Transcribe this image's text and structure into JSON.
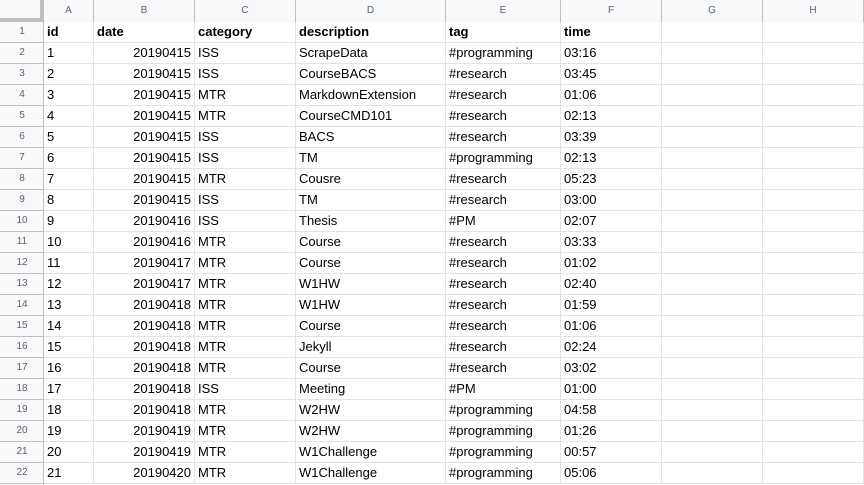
{
  "columns": [
    "A",
    "B",
    "C",
    "D",
    "E",
    "F",
    "G",
    "H"
  ],
  "rows": [
    [
      "id",
      "date",
      "category",
      "description",
      "tag",
      "time"
    ],
    [
      "1",
      "20190415",
      "ISS",
      "ScrapeData",
      "#programming",
      "03:16"
    ],
    [
      "2",
      "20190415",
      "ISS",
      "CourseBACS",
      "#research",
      "03:45"
    ],
    [
      "3",
      "20190415",
      "MTR",
      "MarkdownExtension",
      "#research",
      "01:06"
    ],
    [
      "4",
      "20190415",
      "MTR",
      "CourseCMD101",
      "#research",
      "02:13"
    ],
    [
      "5",
      "20190415",
      "ISS",
      "BACS",
      "#research",
      "03:39"
    ],
    [
      "6",
      "20190415",
      "ISS",
      "TM",
      "#programming",
      "02:13"
    ],
    [
      "7",
      "20190415",
      "MTR",
      "Cousre",
      "#research",
      "05:23"
    ],
    [
      "8",
      "20190415",
      "ISS",
      "TM",
      "#research",
      "03:00"
    ],
    [
      "9",
      "20190416",
      "ISS",
      "Thesis",
      "#PM",
      "02:07"
    ],
    [
      "10",
      "20190416",
      "MTR",
      "Course",
      "#research",
      "03:33"
    ],
    [
      "11",
      "20190417",
      "MTR",
      "Course",
      "#research",
      "01:02"
    ],
    [
      "12",
      "20190417",
      "MTR",
      "W1HW",
      "#research",
      "02:40"
    ],
    [
      "13",
      "20190418",
      "MTR",
      "W1HW",
      "#research",
      "01:59"
    ],
    [
      "14",
      "20190418",
      "MTR",
      "Course",
      "#research",
      "01:06"
    ],
    [
      "15",
      "20190418",
      "MTR",
      "Jekyll",
      "#research",
      "02:24"
    ],
    [
      "16",
      "20190418",
      "MTR",
      "Course",
      "#research",
      "03:02"
    ],
    [
      "17",
      "20190418",
      "ISS",
      "Meeting",
      "#PM",
      "01:00"
    ],
    [
      "18",
      "20190418",
      "MTR",
      "W2HW",
      "#programming",
      "04:58"
    ],
    [
      "19",
      "20190419",
      "MTR",
      "W2HW",
      "#programming",
      "01:26"
    ],
    [
      "20",
      "20190419",
      "MTR",
      "W1Challenge",
      "#programming",
      "00:57"
    ],
    [
      "21",
      "20190420",
      "MTR",
      "W1Challenge",
      "#programming",
      "05:06"
    ]
  ],
  "row_numbers": [
    "1",
    "2",
    "3",
    "4",
    "5",
    "6",
    "7",
    "8",
    "9",
    "10",
    "11",
    "12",
    "13",
    "14",
    "15",
    "16",
    "17",
    "18",
    "19",
    "20",
    "21",
    "22"
  ]
}
